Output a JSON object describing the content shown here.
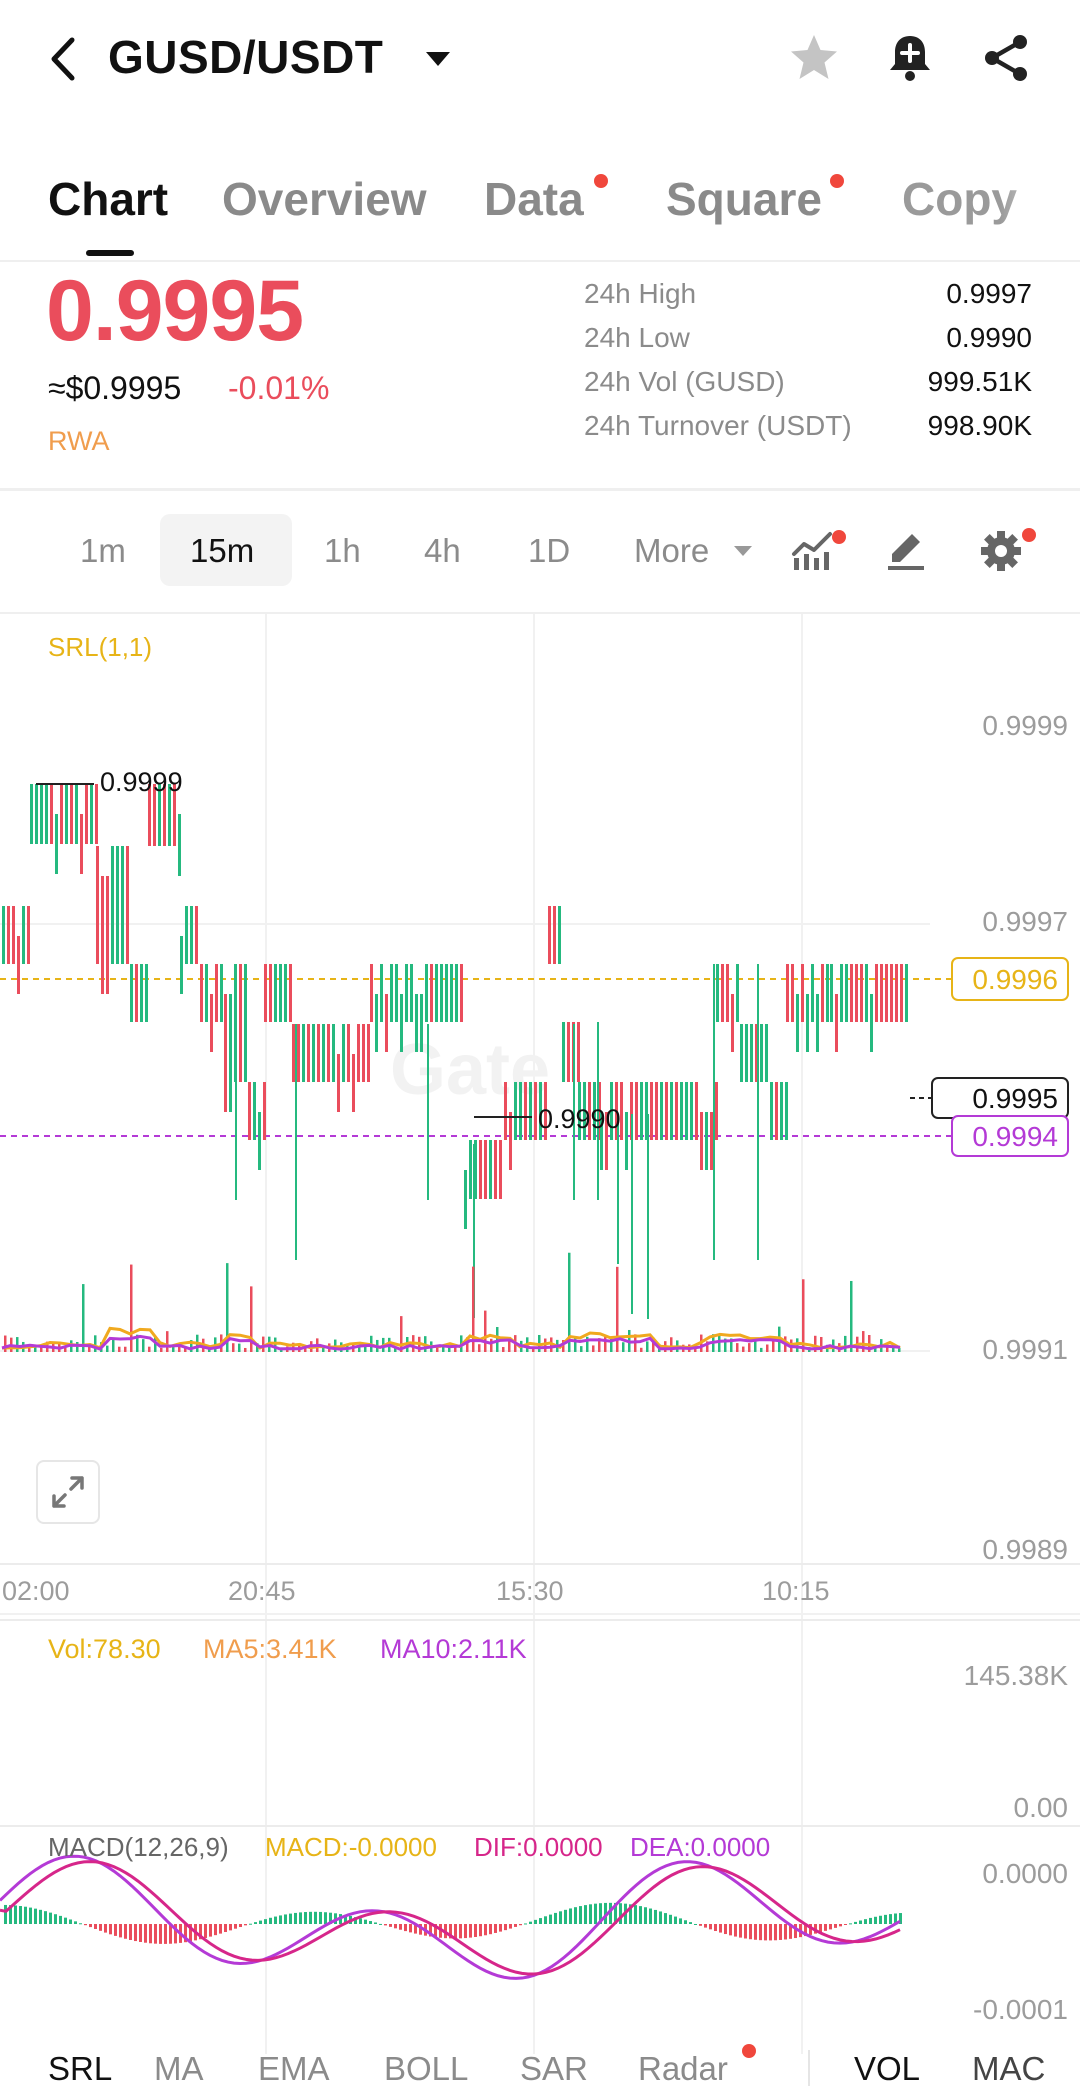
{
  "header": {
    "pair": "GUSD/USDT",
    "icons": [
      "back-arrow-icon",
      "chevron-down-icon",
      "star-icon",
      "bell-icon",
      "share-icon"
    ]
  },
  "tabs": [
    {
      "label": "Chart",
      "active": true,
      "dot": false
    },
    {
      "label": "Overview",
      "active": false,
      "dot": false
    },
    {
      "label": "Data",
      "active": false,
      "dot": true
    },
    {
      "label": "Square",
      "active": false,
      "dot": true
    },
    {
      "label": "Copy",
      "active": false,
      "dot": false
    }
  ],
  "ticker": {
    "price": "0.9995",
    "usd_price": "≈$0.9995",
    "change": "-0.01%",
    "tag": "RWA",
    "stats": [
      {
        "label": "24h High",
        "value": "0.9997"
      },
      {
        "label": "24h Low",
        "value": "0.9990"
      },
      {
        "label": "24h Vol (GUSD)",
        "value": "999.51K"
      },
      {
        "label": "24h Turnover (USDT)",
        "value": "998.90K"
      }
    ]
  },
  "intervals": {
    "items": [
      "1m",
      "15m",
      "1h",
      "4h",
      "1D"
    ],
    "active": "15m",
    "more": "More"
  },
  "chart": {
    "indicator": "SRL(1,1)",
    "y_axis": [
      "0.9999",
      "0.9997",
      "0.9991",
      "0.9989"
    ],
    "x_axis": [
      "02:00",
      "20:45",
      "15:30",
      "10:15"
    ],
    "high_marker": "0.9999",
    "low_marker": "0.9990",
    "line_yellow": "0.9996",
    "line_purple": "0.9994",
    "last_price": "0.9995",
    "watermark": "Gate"
  },
  "volume": {
    "vol": "Vol:78.30",
    "ma5": "MA5:3.41K",
    "ma10": "MA10:2.11K",
    "y_max": "145.38K",
    "y_min": "0.00"
  },
  "macd": {
    "title": "MACD(12,26,9)",
    "macd": "MACD:-0.0000",
    "dif": "DIF:0.0000",
    "dea": "DEA:0.0000",
    "y_max": "0.0000",
    "y_min": "-0.0001"
  },
  "bottom_tabs": [
    {
      "label": "SRL",
      "active": true,
      "dot": false
    },
    {
      "label": "MA",
      "active": false,
      "dot": false
    },
    {
      "label": "EMA",
      "active": false,
      "dot": false
    },
    {
      "label": "BOLL",
      "active": false,
      "dot": false
    },
    {
      "label": "SAR",
      "active": false,
      "dot": false
    },
    {
      "label": "Radar",
      "active": false,
      "dot": true
    },
    {
      "label": "VOL",
      "active": true,
      "dot": false
    },
    {
      "label": "MAC",
      "active": false,
      "dot": false
    }
  ],
  "colors": {
    "up": "#25b97f",
    "down": "#ea4d5c",
    "yellow": "#e7b417",
    "purple": "#b43ad6",
    "orange": "#f09d4d",
    "magenta": "#d6268a"
  }
}
